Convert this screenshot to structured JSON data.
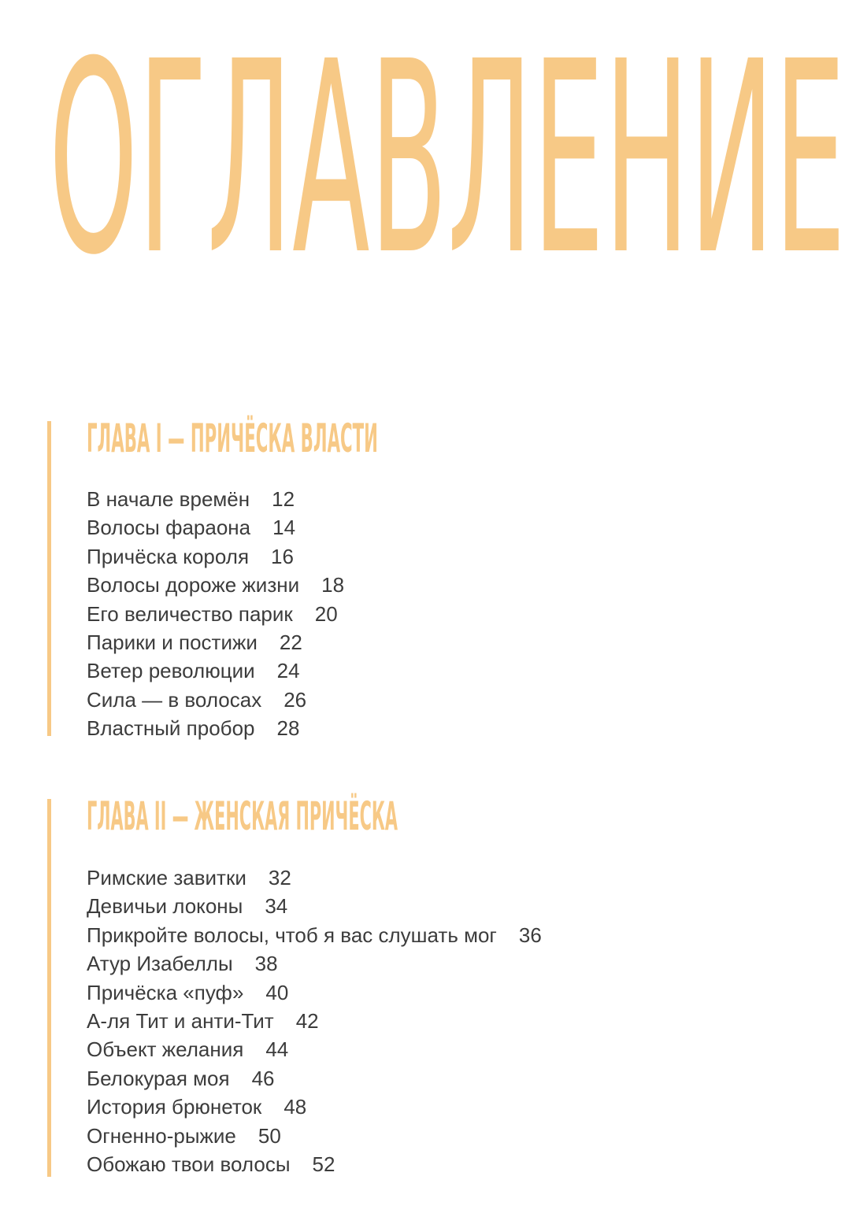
{
  "header": {
    "title": "ОГЛАВЛЕНИЕ"
  },
  "chapters": [
    {
      "title": "ГЛАВА I — ПРИЧЁСКА ВЛАСТИ",
      "entries": [
        {
          "title": "В начале времён",
          "page": "12"
        },
        {
          "title": "Волосы фараона",
          "page": "14"
        },
        {
          "title": "Причёска короля",
          "page": "16"
        },
        {
          "title": "Волосы дороже жизни",
          "page": "18"
        },
        {
          "title": "Его величество парик",
          "page": "20"
        },
        {
          "title": "Парики и постижи",
          "page": "22"
        },
        {
          "title": "Ветер революции",
          "page": "24"
        },
        {
          "title": "Сила — в волосах",
          "page": "26"
        },
        {
          "title": "Властный пробор",
          "page": "28"
        }
      ]
    },
    {
      "title": "ГЛАВА II — ЖЕНСКАЯ ПРИЧЁСКА",
      "entries": [
        {
          "title": "Римские завитки",
          "page": "32"
        },
        {
          "title": "Девичьи локоны",
          "page": "34"
        },
        {
          "title": "Прикройте волосы, чтоб я вас слушать мог",
          "page": "36"
        },
        {
          "title": "Атур Изабеллы",
          "page": "38"
        },
        {
          "title": "Причёска «пуф»",
          "page": "40"
        },
        {
          "title": "А-ля Тит и анти-Тит",
          "page": "42"
        },
        {
          "title": "Объект желания",
          "page": "44"
        },
        {
          "title": "Белокурая моя",
          "page": "46"
        },
        {
          "title": "История брюнеток",
          "page": "48"
        },
        {
          "title": "Огненно-рыжие",
          "page": "50"
        },
        {
          "title": "Обожаю твои волосы",
          "page": "52"
        }
      ]
    }
  ]
}
